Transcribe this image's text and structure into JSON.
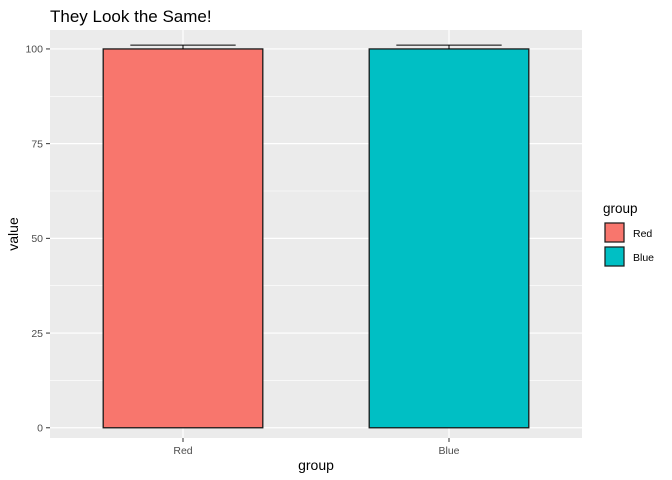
{
  "chart_data": {
    "type": "bar",
    "title": "They Look the Same!",
    "xlabel": "group",
    "ylabel": "value",
    "categories": [
      "Red",
      "Blue"
    ],
    "values": [
      100,
      100
    ],
    "error_upper": [
      101,
      101
    ],
    "colors": [
      "#F8766D",
      "#00BFC4"
    ],
    "ylim": [
      -2.7,
      105
    ],
    "yticks": [
      0,
      25,
      50,
      75,
      100
    ],
    "ytick_labels": [
      "0",
      "25",
      "50",
      "75",
      "100"
    ],
    "grid": true,
    "legend": {
      "title": "group",
      "placement": "right",
      "entries": [
        "Red",
        "Blue"
      ]
    }
  }
}
